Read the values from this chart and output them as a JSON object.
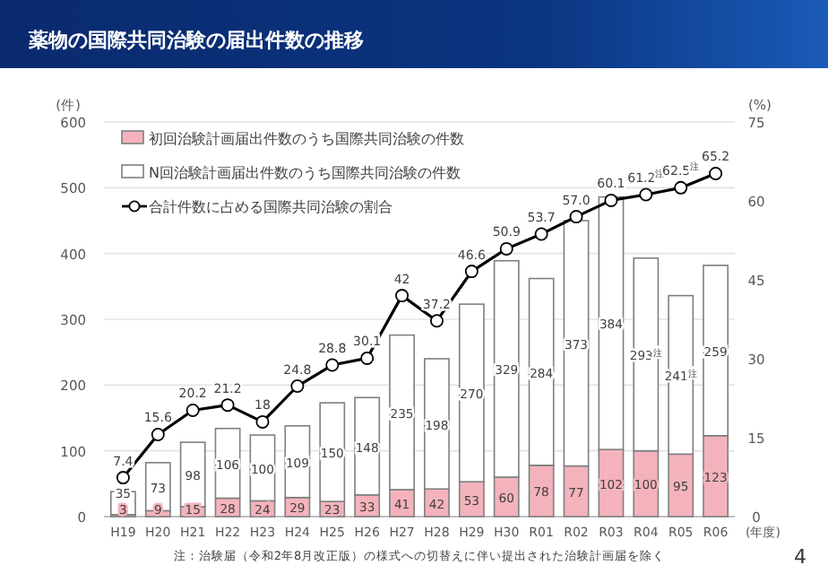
{
  "chart_data": {
    "type": "bar",
    "title": "薬物の国際共同治験の届出件数の推移",
    "ylabel": "(件)",
    "y2label": "(%)",
    "xlabel": "(年度)",
    "categories": [
      "H19",
      "H20",
      "H21",
      "H22",
      "H23",
      "H24",
      "H25",
      "H26",
      "H27",
      "H28",
      "H29",
      "H30",
      "R01",
      "R02",
      "R03",
      "R04",
      "R05",
      "R06"
    ],
    "stacked": true,
    "ylim": [
      0,
      600
    ],
    "yticks": [
      0,
      100,
      200,
      300,
      400,
      500,
      600
    ],
    "y2lim": [
      0,
      75
    ],
    "y2ticks": [
      0,
      15,
      30,
      45,
      60,
      75
    ],
    "grid": "y",
    "legend": "top left",
    "series": [
      {
        "name": "初回治験計画届出件数のうち国際共同治験の件数",
        "color": "#f4b3bc",
        "values": [
          3,
          9,
          15,
          28,
          24,
          29,
          23,
          33,
          41,
          42,
          53,
          60,
          78,
          77,
          102,
          100,
          95,
          123
        ],
        "value_labels": [
          "3",
          "9",
          "15",
          "28",
          "24",
          "29",
          "23",
          "33",
          "41",
          "42",
          "53",
          "60",
          "78",
          "77",
          "102",
          "100",
          "95",
          "123"
        ]
      },
      {
        "name": "N回治験計画届出件数のうち国際共同治験の件数",
        "color": "#ffffff",
        "values": [
          35,
          73,
          98,
          106,
          100,
          109,
          150,
          148,
          235,
          198,
          270,
          329,
          284,
          373,
          384,
          293,
          241,
          259
        ],
        "value_labels": [
          "35",
          "73",
          "98",
          "106",
          "100",
          "109",
          "150",
          "148",
          "235",
          "198",
          "270",
          "329",
          "284",
          "373",
          "384",
          "293$^{注}$",
          "241$^{注}$",
          "259"
        ]
      },
      {
        "name": "合計件数に占める国際共同治験の割合",
        "type": "line",
        "axis": "y2",
        "color": "#000000",
        "marker": "circle",
        "values": [
          7.4,
          15.6,
          20.2,
          21.2,
          18,
          24.8,
          28.8,
          30.1,
          42,
          37.2,
          46.6,
          50.9,
          53.7,
          57.0,
          60.1,
          61.2,
          62.5,
          65.2
        ],
        "value_labels": [
          "7.4",
          "15.6",
          "20.2",
          "21.2",
          "18",
          "24.8",
          "28.8",
          "30.1",
          "42",
          "37.2",
          "46.6",
          "50.9",
          "53.7",
          "57.0",
          "60.1",
          "61.2$^{注}$",
          "62.5$^{注}$",
          "65.2"
        ]
      }
    ],
    "annotations": [
      "注：治験届（令和2年8月改正版）の様式への切替えに伴い提出された治験計画届を除く",
      "4"
    ]
  }
}
